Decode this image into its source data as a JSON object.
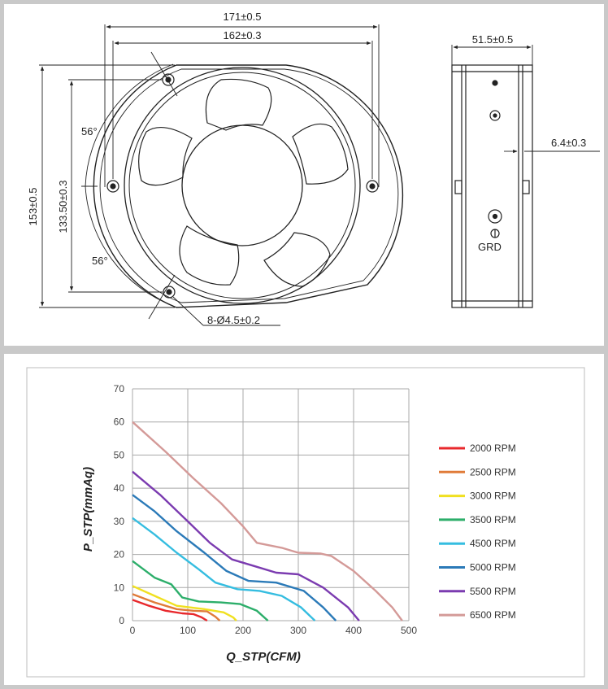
{
  "drawing": {
    "dims": {
      "width_outer": "171±0.5",
      "width_hole": "162±0.3",
      "depth": "51.5±0.5",
      "height_outer": "153±0.5",
      "height_hole": "133.50±0.3",
      "angle_top": "56°",
      "angle_bottom": "56°",
      "holes": "8-Ø4.5±0.2",
      "flange": "6.4±0.3",
      "ground": "GRD"
    }
  },
  "chart_data": {
    "type": "line",
    "xlabel": "Q_STP(CFM)",
    "ylabel": "P_STP(mmAq)",
    "xlim": [
      0,
      500
    ],
    "ylim": [
      0,
      70
    ],
    "xticks": [
      0,
      100,
      200,
      300,
      400,
      500
    ],
    "yticks": [
      0,
      10,
      20,
      30,
      40,
      50,
      60,
      70
    ],
    "grid": true,
    "legend_position": "right",
    "series": [
      {
        "name": "2000 RPM",
        "color": "#e8282c",
        "points": [
          [
            0,
            6.3
          ],
          [
            30,
            4.5
          ],
          [
            60,
            3
          ],
          [
            90,
            2.2
          ],
          [
            110,
            2
          ],
          [
            125,
            1
          ],
          [
            135,
            0
          ]
        ]
      },
      {
        "name": "2500 RPM",
        "color": "#e07b39",
        "points": [
          [
            0,
            8
          ],
          [
            40,
            5.5
          ],
          [
            80,
            3.5
          ],
          [
            110,
            3
          ],
          [
            135,
            2.8
          ],
          [
            150,
            1.2
          ],
          [
            158,
            0
          ]
        ]
      },
      {
        "name": "3000 RPM",
        "color": "#f0e020",
        "points": [
          [
            0,
            10.5
          ],
          [
            40,
            7.5
          ],
          [
            80,
            4.5
          ],
          [
            130,
            3.5
          ],
          [
            165,
            2.5
          ],
          [
            182,
            1
          ],
          [
            188,
            0
          ]
        ]
      },
      {
        "name": "3500 RPM",
        "color": "#2cae6a",
        "points": [
          [
            0,
            18
          ],
          [
            40,
            13
          ],
          [
            70,
            11
          ],
          [
            90,
            7
          ],
          [
            120,
            5.8
          ],
          [
            160,
            5.5
          ],
          [
            195,
            5
          ],
          [
            225,
            3
          ],
          [
            245,
            0
          ]
        ]
      },
      {
        "name": "4500 RPM",
        "color": "#35bde0",
        "points": [
          [
            0,
            31
          ],
          [
            40,
            26
          ],
          [
            80,
            20.5
          ],
          [
            120,
            15.5
          ],
          [
            150,
            11.5
          ],
          [
            190,
            9.5
          ],
          [
            230,
            9
          ],
          [
            270,
            7.5
          ],
          [
            305,
            4
          ],
          [
            330,
            0
          ]
        ]
      },
      {
        "name": "5000 RPM",
        "color": "#2b7ab8",
        "points": [
          [
            0,
            38
          ],
          [
            40,
            33
          ],
          [
            80,
            27
          ],
          [
            130,
            20.5
          ],
          [
            170,
            15
          ],
          [
            210,
            12
          ],
          [
            260,
            11.5
          ],
          [
            310,
            9
          ],
          [
            345,
            4
          ],
          [
            368,
            0
          ]
        ]
      },
      {
        "name": "5500 RPM",
        "color": "#7b3bb0",
        "points": [
          [
            0,
            45
          ],
          [
            50,
            38
          ],
          [
            100,
            30
          ],
          [
            140,
            23.5
          ],
          [
            180,
            18.5
          ],
          [
            220,
            16.5
          ],
          [
            260,
            14.5
          ],
          [
            300,
            14
          ],
          [
            345,
            10
          ],
          [
            390,
            4
          ],
          [
            410,
            0
          ]
        ]
      },
      {
        "name": "6500 RPM",
        "color": "#d49a98",
        "points": [
          [
            0,
            60
          ],
          [
            60,
            51
          ],
          [
            110,
            43
          ],
          [
            160,
            35.5
          ],
          [
            200,
            28.5
          ],
          [
            225,
            23.5
          ],
          [
            270,
            22
          ],
          [
            300,
            20.5
          ],
          [
            340,
            20.3
          ],
          [
            360,
            19.5
          ],
          [
            400,
            15
          ],
          [
            440,
            9
          ],
          [
            470,
            4
          ],
          [
            488,
            0
          ]
        ]
      }
    ]
  }
}
